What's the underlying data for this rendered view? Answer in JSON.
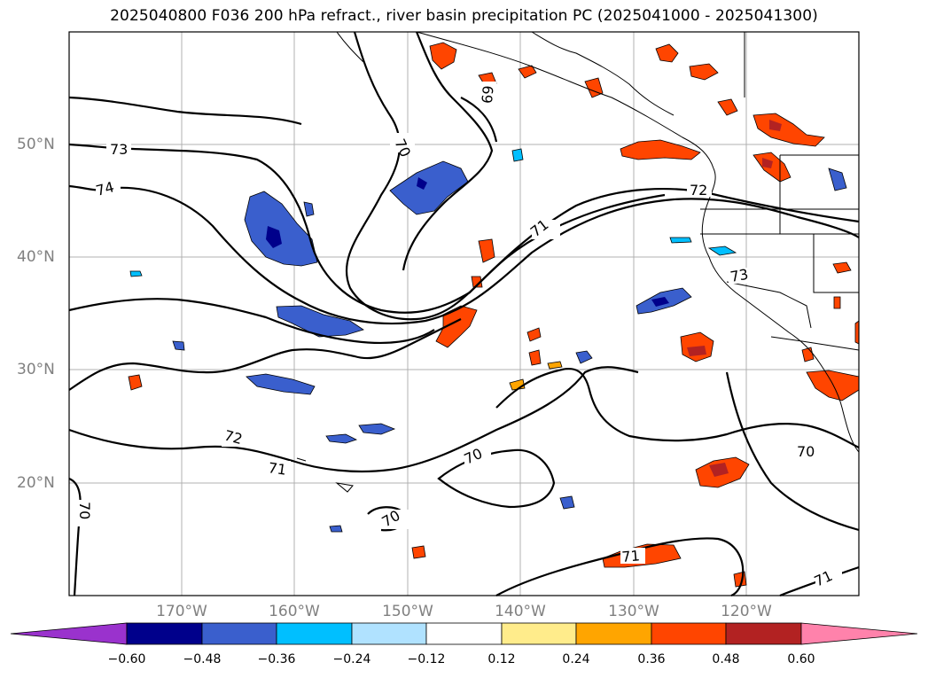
{
  "title": "2025040800 F036 200 hPa refract., river basin precipitation PC (2025041000 - 2025041300)",
  "axes": {
    "lat_labels": [
      "50°N",
      "40°N",
      "30°N",
      "20°N"
    ],
    "lon_labels": [
      "170°W",
      "160°W",
      "150°W",
      "140°W",
      "130°W",
      "120°W"
    ]
  },
  "contour_labels": [
    "73",
    "74",
    "70",
    "69",
    "72",
    "71",
    "73",
    "72",
    "71",
    "70",
    "70",
    "70",
    "71",
    "71",
    "70"
  ],
  "colorbar": {
    "ticks": [
      "−0.60",
      "−0.48",
      "−0.36",
      "−0.24",
      "−0.12",
      "0.12",
      "0.24",
      "0.36",
      "0.48",
      "0.60"
    ],
    "colors": [
      "#9a32cd",
      "#00008b",
      "#3a5fcd",
      "#00bfff",
      "#b0e2ff",
      "#ffffff",
      "#ffec8b",
      "#ffa500",
      "#ff4500",
      "#b22222",
      "#ff82ab"
    ]
  }
}
